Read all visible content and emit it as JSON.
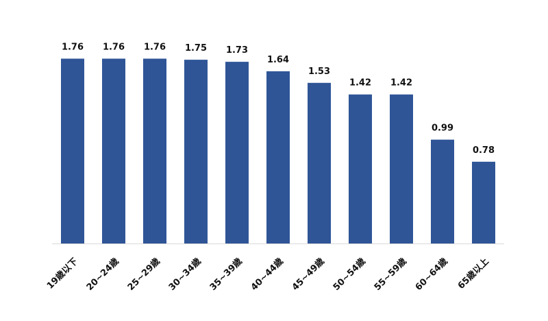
{
  "chart_data": {
    "type": "bar",
    "title": "",
    "xlabel": "",
    "ylabel": "",
    "categories": [
      "19歳以下",
      "20~24歳",
      "25~29歳",
      "30~34歳",
      "35~39歳",
      "40~44歳",
      "45~49歳",
      "50~54歳",
      "55~59歳",
      "60~64歳",
      "65歳以上"
    ],
    "values": [
      1.76,
      1.76,
      1.76,
      1.75,
      1.73,
      1.64,
      1.53,
      1.42,
      1.42,
      0.99,
      0.78
    ],
    "value_labels": [
      "1.76",
      "1.76",
      "1.76",
      "1.75",
      "1.73",
      "1.64",
      "1.53",
      "1.42",
      "1.42",
      "0.99",
      "0.78"
    ],
    "ylim": [
      0,
      2.0
    ],
    "grid": false,
    "legend": "none",
    "bar_color": "#2F5597",
    "axis_color": "#d9d9d9"
  }
}
